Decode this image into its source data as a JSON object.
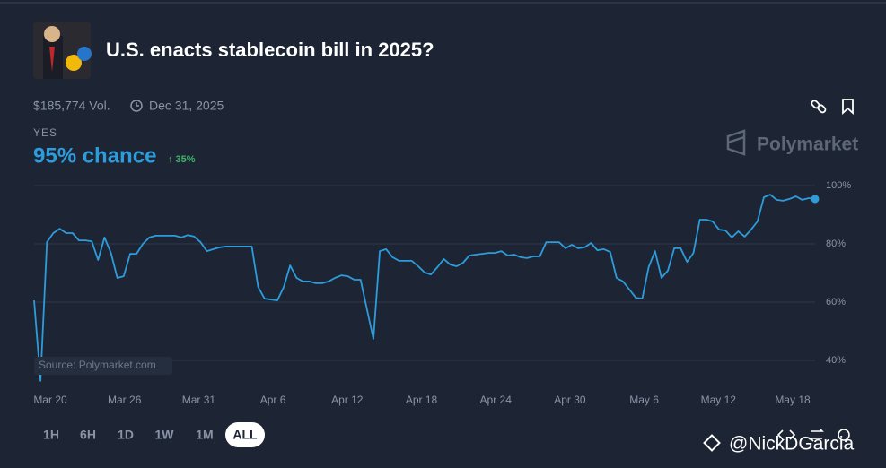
{
  "header": {
    "title": "U.S. enacts stablecoin bill in 2025?",
    "volume": "$185,774 Vol.",
    "end_date": "Dec 31, 2025",
    "outcome": "YES",
    "chance": "95% chance",
    "change": "↑ 35%",
    "brand": "Polymarket"
  },
  "chart_data": {
    "type": "line",
    "source": "Source: Polymarket.com",
    "xtick_labels": [
      "Mar 20",
      "Mar 26",
      "Mar 31",
      "Apr 6",
      "Apr 12",
      "Apr 18",
      "Apr 24",
      "Apr 30",
      "May 6",
      "May 12",
      "May 18"
    ],
    "series": [
      {
        "color": "#2d9cdb",
        "values": [
          60.6,
          33,
          80.6,
          83.7,
          85.2,
          83.7,
          83.7,
          81.2,
          81.2,
          80.9,
          74.5,
          82.2,
          76.9,
          68.3,
          68.9,
          76.6,
          76.6,
          80,
          82.2,
          82.8,
          82.8,
          82.8,
          82.8,
          82.2,
          83,
          82.5,
          80.6,
          77.5,
          78.2,
          78.8,
          79.1,
          79.1,
          79.1,
          79.1,
          79.1,
          65.2,
          61.2,
          60.9,
          60.6,
          65.2,
          72.6,
          68.3,
          67.1,
          67.1,
          66.5,
          66.5,
          67.1,
          68.3,
          69.2,
          68.9,
          67.7,
          67.7,
          57.5,
          47.4,
          77.5,
          78.2,
          75.4,
          74.2,
          74.2,
          74.2,
          72.3,
          70.2,
          69.5,
          72,
          74.8,
          72.9,
          72.3,
          73.5,
          76,
          76.3,
          76.6,
          76.9,
          76.9,
          77.5,
          76,
          76.3,
          75.4,
          75.1,
          75.7,
          75.7,
          80.6,
          80.6,
          80.6,
          78.5,
          79.7,
          78.5,
          78.8,
          80.3,
          77.8,
          78.2,
          77.2,
          68.3,
          67.1,
          64.3,
          61.5,
          61.2,
          72,
          77.5,
          68.3,
          70.8,
          78.5,
          78.5,
          73.8,
          76.9,
          88.3,
          88.3,
          87.7,
          84.9,
          84.6,
          82.2,
          84.3,
          82.5,
          84.9,
          87.7,
          96,
          96.9,
          95.1,
          94.8,
          95.4,
          96.3,
          95.1,
          95.7,
          95.4
        ]
      }
    ],
    "ylim": [
      30,
      100
    ],
    "yticks": [
      {
        "value": 40,
        "label": "40%"
      },
      {
        "value": 60,
        "label": "60%"
      },
      {
        "value": 80,
        "label": "80%"
      },
      {
        "value": 100,
        "label": "100%"
      }
    ],
    "grid": true
  },
  "controls": {
    "ranges": [
      "1H",
      "6H",
      "1D",
      "1W",
      "1M",
      "ALL"
    ],
    "active": 5
  },
  "watermark": "@NickDGarcia"
}
